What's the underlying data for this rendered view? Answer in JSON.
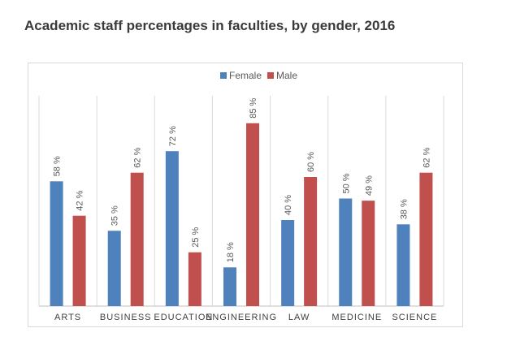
{
  "chart_data": {
    "type": "bar",
    "title": "Academic staff percentages in faculties, by gender, 2016",
    "categories": [
      "ARTS",
      "BUSINESS",
      "EDUCATION",
      "ENGINEERING",
      "LAW",
      "MEDICINE",
      "SCIENCE"
    ],
    "series": [
      {
        "name": "Female",
        "color": "#4f81bd",
        "values": [
          58,
          35,
          72,
          18,
          40,
          50,
          38
        ]
      },
      {
        "name": "Male",
        "color": "#c0504d",
        "values": [
          42,
          62,
          25,
          85,
          60,
          49,
          62
        ]
      }
    ],
    "value_suffix": " %",
    "ylim": [
      0,
      100
    ],
    "legend_position": "top-center",
    "xlabel": "",
    "ylabel": ""
  }
}
